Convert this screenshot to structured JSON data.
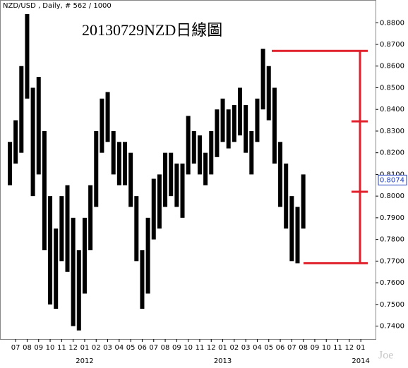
{
  "chart_data": {
    "type": "range",
    "header": "NZD/USD , Daily, # 562 / 1000",
    "title": "20130729NZD日線圖",
    "last_value_label": "0.8074",
    "watermark": "Joe",
    "categories": [
      null,
      "07",
      null,
      "08",
      null,
      "09",
      null,
      "10",
      null,
      "11",
      null,
      "12",
      null,
      "01",
      null,
      "02",
      null,
      "03",
      null,
      "04",
      null,
      "05",
      null,
      "06",
      null,
      "07",
      null,
      "08",
      null,
      "09",
      null,
      "10",
      null,
      "11",
      null,
      "12",
      null,
      "01",
      null,
      "02",
      null,
      "03",
      null,
      "04",
      null,
      "05",
      null,
      "06",
      null,
      "07",
      null,
      "08",
      null,
      "09",
      null,
      "10",
      null,
      "11",
      null,
      "12",
      null,
      "01"
    ],
    "year_labels": [
      "2012",
      "2013",
      "2014"
    ],
    "series": [
      {
        "name": "High",
        "color": "#000000",
        "values": [
          0.825,
          0.835,
          0.86,
          0.884,
          0.85,
          0.855,
          0.83,
          0.8,
          0.785,
          0.8,
          0.805,
          0.79,
          0.775,
          0.79,
          0.805,
          0.83,
          0.845,
          0.848,
          0.83,
          0.825,
          0.825,
          0.82,
          0.8,
          0.775,
          0.79,
          0.808,
          0.81,
          0.82,
          0.82,
          0.815,
          0.815,
          0.837,
          0.83,
          0.828,
          0.82,
          0.83,
          0.84,
          0.845,
          0.84,
          0.842,
          0.85,
          0.842,
          0.83,
          0.845,
          0.868,
          0.86,
          0.85,
          0.825,
          0.815,
          0.8,
          0.795,
          0.81,
          null,
          null,
          null,
          null,
          null,
          null,
          null,
          null,
          null,
          null
        ]
      },
      {
        "name": "Low",
        "color": "#000000",
        "values": [
          0.805,
          0.815,
          0.82,
          0.845,
          0.8,
          0.81,
          0.775,
          0.75,
          0.748,
          0.77,
          0.765,
          0.74,
          0.738,
          0.755,
          0.775,
          0.795,
          0.82,
          0.825,
          0.81,
          0.805,
          0.805,
          0.795,
          0.77,
          0.748,
          0.755,
          0.78,
          0.785,
          0.795,
          0.8,
          0.795,
          0.79,
          0.81,
          0.815,
          0.81,
          0.805,
          0.81,
          0.818,
          0.825,
          0.822,
          0.825,
          0.828,
          0.82,
          0.81,
          0.825,
          0.84,
          0.835,
          0.815,
          0.795,
          0.785,
          0.77,
          0.769,
          0.785,
          null,
          null,
          null,
          null,
          null,
          null,
          null,
          null,
          null,
          null
        ]
      }
    ],
    "levels": [
      0.867,
      0.8345,
      0.802,
      0.769
    ],
    "level_color": "#e0202a",
    "ylim": [
      0.734,
      0.8905
    ],
    "yticks": [
      {
        "value": 0.74,
        "label": "0.7400"
      },
      {
        "value": 0.75,
        "label": "0.7500"
      },
      {
        "value": 0.76,
        "label": "0.7600"
      },
      {
        "value": 0.77,
        "label": "0.7700"
      },
      {
        "value": 0.78,
        "label": "0.7800"
      },
      {
        "value": 0.79,
        "label": "0.7900"
      },
      {
        "value": 0.8,
        "label": "0.8000"
      },
      {
        "value": 0.81,
        "label": "0.8100"
      },
      {
        "value": 0.82,
        "label": "0.8200"
      },
      {
        "value": 0.83,
        "label": "0.8300"
      },
      {
        "value": 0.84,
        "label": "0.8400"
      },
      {
        "value": 0.85,
        "label": "0.8500"
      },
      {
        "value": 0.86,
        "label": "0.8600"
      },
      {
        "value": 0.87,
        "label": "0.8700"
      },
      {
        "value": 0.88,
        "label": "0.8800"
      }
    ]
  }
}
